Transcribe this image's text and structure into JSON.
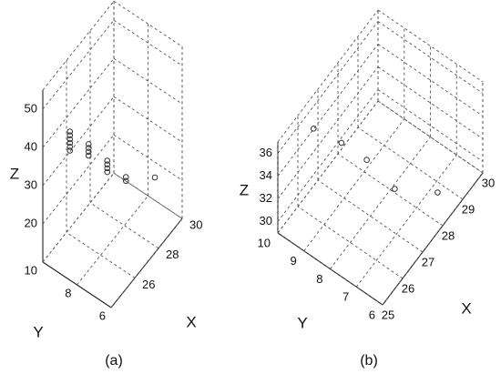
{
  "chart_data": [
    {
      "type": "scatter3d",
      "caption": "(a)",
      "xlabel": "X",
      "ylabel": "Y",
      "zlabel": "Z",
      "x": [
        26,
        26,
        26,
        26,
        26,
        26,
        27,
        27,
        27,
        27,
        28,
        28,
        28,
        28,
        29,
        29,
        30
      ],
      "y": [
        9.8,
        9.8,
        9.8,
        9.8,
        9.8,
        9.8,
        9.4,
        9.4,
        9.4,
        9.4,
        9.0,
        9.0,
        9.0,
        9.0,
        8.6,
        8.6,
        7.6
      ],
      "z": [
        32,
        33,
        34,
        35,
        36,
        37,
        28,
        29,
        30,
        31,
        21,
        22,
        23,
        24,
        16,
        17,
        16
      ],
      "xlim": [
        24,
        30
      ],
      "ylim": [
        6,
        10
      ],
      "zlim": [
        10,
        55
      ],
      "xticks": [
        26,
        28,
        30
      ],
      "yticks": [
        6,
        8,
        10
      ],
      "zticks": [
        20,
        30,
        40,
        50
      ],
      "color": "#333333",
      "grid": true
    },
    {
      "type": "scatter3d",
      "caption": "(b)",
      "xlabel": "X",
      "ylabel": "Y",
      "zlabel": "Z",
      "x": [
        26,
        27,
        28,
        27.7,
        28.4
      ],
      "y": [
        9.4,
        9.1,
        8.9,
        7.6,
        6.5
      ],
      "z": [
        36.8,
        33.7,
        30.2,
        30.4,
        30.2
      ],
      "xlim": [
        25,
        30
      ],
      "ylim": [
        6,
        10
      ],
      "zlim": [
        29,
        37
      ],
      "xticks": [
        25,
        26,
        27,
        28,
        29,
        30
      ],
      "yticks": [
        6,
        7,
        8,
        9,
        10
      ],
      "zticks": [
        30,
        32,
        34,
        36
      ],
      "color": "#333333",
      "grid": true
    }
  ]
}
